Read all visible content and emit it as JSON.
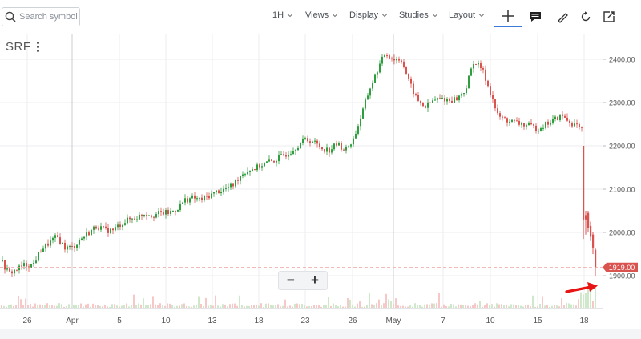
{
  "toolbar": {
    "search_placeholder": "Search symbol",
    "interval": "1H",
    "views": "Views",
    "display": "Display",
    "studies": "Studies",
    "layout": "Layout",
    "icons": [
      "crosshair-icon",
      "notes-icon",
      "draw-pencil-icon",
      "refresh-icon",
      "popout-icon"
    ]
  },
  "symbol": "SRF",
  "colors": {
    "up": "#2e9e3e",
    "down": "#d9534f",
    "price_line": "#f0a3a3",
    "price_tag": "#d9534f",
    "arrow": "#e81414"
  },
  "chart_data": {
    "type": "candlestick",
    "title": "",
    "symbol": "SRF",
    "interval": "1H",
    "x_tick_labels": [
      "26",
      "Apr",
      "5",
      "10",
      "13",
      "18",
      "23",
      "26",
      "May",
      "7",
      "10",
      "15",
      "18"
    ],
    "y_tick_labels": [
      "1900.00",
      "2000.00",
      "2100.00",
      "2200.00",
      "2300.00",
      "2400.00"
    ],
    "ylim": [
      1820,
      2450
    ],
    "last_price": 1919,
    "last_price_label": "1919.00",
    "grid": true,
    "legend": "none",
    "volume_pane": true,
    "price_path": [
      [
        0,
        1935
      ],
      [
        10,
        1905
      ],
      [
        20,
        1915
      ],
      [
        30,
        1925
      ],
      [
        40,
        1925
      ],
      [
        50,
        1960
      ],
      [
        60,
        1975
      ],
      [
        70,
        1990
      ],
      [
        80,
        1965
      ],
      [
        90,
        1965
      ],
      [
        100,
        1985
      ],
      [
        110,
        2000
      ],
      [
        120,
        2015
      ],
      [
        130,
        2005
      ],
      [
        140,
        2005
      ],
      [
        150,
        2020
      ],
      [
        160,
        2030
      ],
      [
        170,
        2035
      ],
      [
        180,
        2045
      ],
      [
        190,
        2040
      ],
      [
        200,
        2045
      ],
      [
        210,
        2045
      ],
      [
        220,
        2055
      ],
      [
        230,
        2075
      ],
      [
        240,
        2080
      ],
      [
        250,
        2075
      ],
      [
        260,
        2085
      ],
      [
        270,
        2095
      ],
      [
        280,
        2100
      ],
      [
        290,
        2110
      ],
      [
        300,
        2135
      ],
      [
        310,
        2145
      ],
      [
        320,
        2150
      ],
      [
        330,
        2160
      ],
      [
        340,
        2165
      ],
      [
        350,
        2175
      ],
      [
        360,
        2185
      ],
      [
        370,
        2200
      ],
      [
        380,
        2215
      ],
      [
        390,
        2210
      ],
      [
        400,
        2195
      ],
      [
        410,
        2190
      ],
      [
        420,
        2205
      ],
      [
        430,
        2190
      ],
      [
        440,
        2215
      ],
      [
        450,
        2270
      ],
      [
        460,
        2330
      ],
      [
        470,
        2375
      ],
      [
        480,
        2415
      ],
      [
        490,
        2400
      ],
      [
        500,
        2400
      ],
      [
        510,
        2345
      ],
      [
        520,
        2305
      ],
      [
        530,
        2290
      ],
      [
        540,
        2305
      ],
      [
        550,
        2310
      ],
      [
        560,
        2305
      ],
      [
        570,
        2310
      ],
      [
        580,
        2330
      ],
      [
        590,
        2395
      ],
      [
        600,
        2380
      ],
      [
        610,
        2330
      ],
      [
        620,
        2270
      ],
      [
        630,
        2260
      ],
      [
        640,
        2255
      ],
      [
        650,
        2250
      ],
      [
        660,
        2245
      ],
      [
        670,
        2240
      ],
      [
        680,
        2250
      ],
      [
        690,
        2260
      ],
      [
        700,
        2270
      ],
      [
        710,
        2255
      ],
      [
        720,
        2245
      ],
      [
        725,
        2235
      ],
      [
        727,
        2185
      ],
      [
        730,
        2030
      ],
      [
        735,
        2040
      ],
      [
        740,
        2000
      ],
      [
        745,
        1919
      ]
    ]
  }
}
